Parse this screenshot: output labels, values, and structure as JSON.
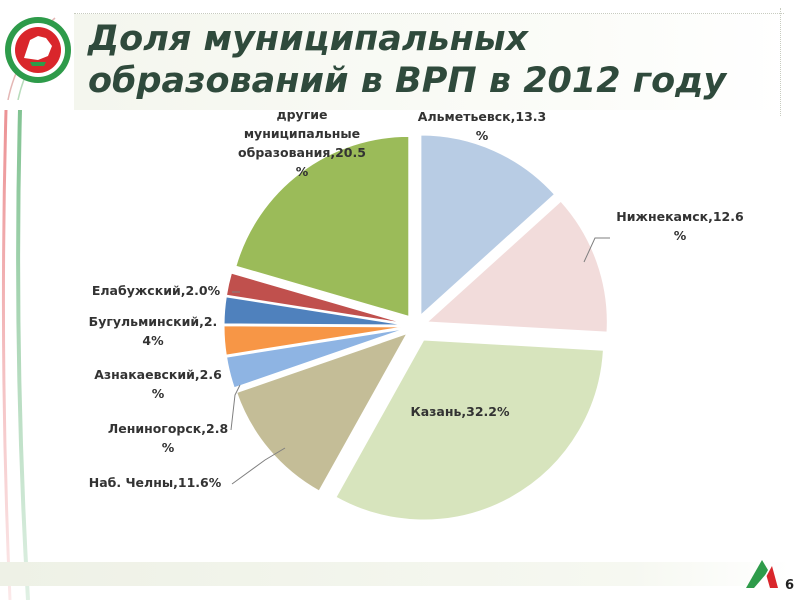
{
  "slide": {
    "title_line1": "Доля муниципальных",
    "title_line2": "образований в ВРП в 2012 году",
    "page_number": "6",
    "emblem_icon": "tatarstan-emblem-icon",
    "corner_logo_icon": "tatarstan-corner-logo-icon",
    "colors": {
      "title": "#2f4a3c",
      "emblem_green": "#2e9b4a",
      "emblem_red": "#d9262b"
    }
  },
  "chart_data": {
    "type": "pie",
    "exploded": true,
    "slices": [
      {
        "name": "Альметьевск",
        "value": 13.3,
        "label_lines": [
          "Альметьевск,13.3",
          "%"
        ],
        "color": "#b8cce4"
      },
      {
        "name": "Нижнекамск",
        "value": 12.6,
        "label_lines": [
          "Нижнекамск,12.6",
          "%"
        ],
        "color": "#f2dcdb"
      },
      {
        "name": "Казань",
        "value": 32.2,
        "label_lines": [
          "Казань,32.2%"
        ],
        "color": "#d7e4bd"
      },
      {
        "name": "Наб. Челны",
        "value": 11.6,
        "label_lines": [
          "Наб. Челны,11.6%"
        ],
        "color": "#c4bd97"
      },
      {
        "name": "Лениногорск",
        "value": 2.8,
        "label_lines": [
          "Лениногорск,2.8",
          "%"
        ],
        "color": "#8eb4e3"
      },
      {
        "name": "Азнакаевский",
        "value": 2.6,
        "label_lines": [
          "Азнакаевский,2.6",
          "%"
        ],
        "color": "#f79646"
      },
      {
        "name": "Бугульминский",
        "value": 2.4,
        "label_lines": [
          "Бугульминский,2.",
          "4%"
        ],
        "color": "#4f81bd"
      },
      {
        "name": "Елабужский",
        "value": 2.0,
        "label_lines": [
          "Елабужский,2.0%"
        ],
        "color": "#c0504d"
      },
      {
        "name": "другие муниципальные образования",
        "value": 20.5,
        "label_lines": [
          "другие",
          "муниципальные",
          "образования,20.5",
          "%"
        ],
        "color": "#9bbb59"
      }
    ]
  }
}
